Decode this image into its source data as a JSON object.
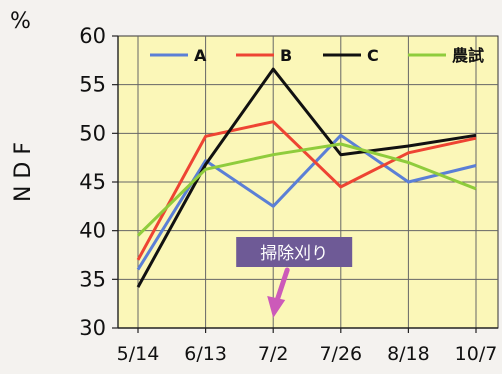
{
  "chart_data": {
    "type": "line",
    "title": "",
    "xlabel": "",
    "ylabel": "N D F",
    "unit_label": "%",
    "ylim": [
      30,
      60
    ],
    "yticks": [
      30,
      35,
      40,
      45,
      50,
      55,
      60
    ],
    "grid": true,
    "legend_position": "top",
    "categories": [
      "5/14",
      "6/13",
      "7/2",
      "7/26",
      "8/18",
      "10/7"
    ],
    "series": [
      {
        "name": "A",
        "color": "#5b7fd6",
        "values": [
          36.0,
          47.2,
          42.5,
          49.8,
          45.0,
          46.7
        ]
      },
      {
        "name": "B",
        "color": "#ee4433",
        "values": [
          37.0,
          49.7,
          51.2,
          44.5,
          48.0,
          49.5
        ]
      },
      {
        "name": "C",
        "color": "#111111",
        "values": [
          34.2,
          46.8,
          56.6,
          47.8,
          48.7,
          49.8
        ]
      },
      {
        "name": "農試",
        "color": "#8fcc3c",
        "values": [
          39.5,
          46.3,
          47.8,
          48.9,
          47.0,
          44.3
        ]
      }
    ],
    "annotation": {
      "text": "掃除刈り",
      "category": "7/2",
      "box_color": "#6e5a96",
      "arrow_color": "#cc5ab9"
    },
    "plot_background": "#fbf7b8"
  }
}
